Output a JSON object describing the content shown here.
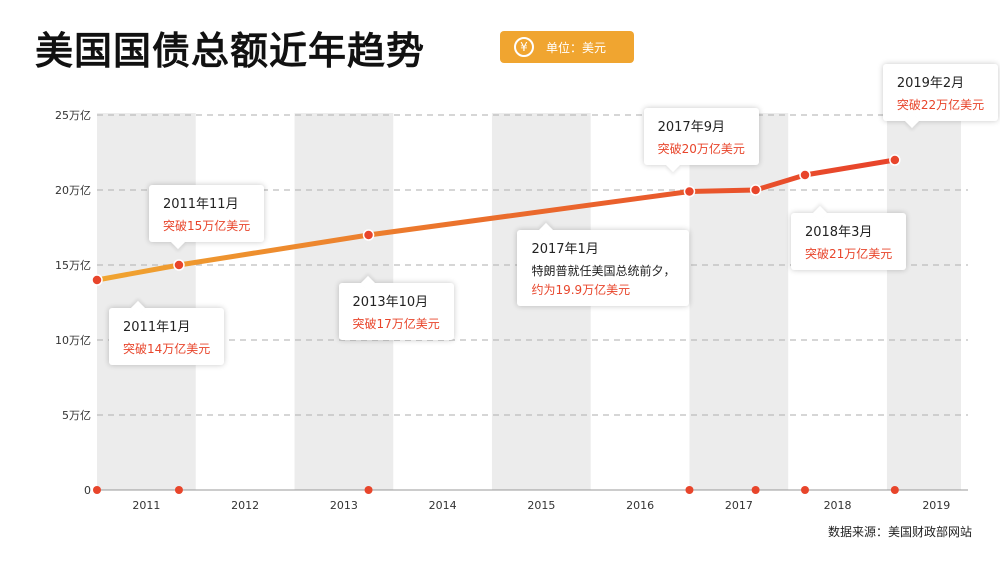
{
  "title": "美国国债总额近年趋势",
  "unit_icon": "¥",
  "unit_label": "单位：美元",
  "source": "数据来源：美国财政部网站",
  "colors": {
    "line_start": "#f0a530",
    "line_end": "#e8452b",
    "accent": "#e8452b",
    "band": "#ececec",
    "grid": "#bdbdbd"
  },
  "chart_data": {
    "type": "line",
    "title": "美国国债总额近年趋势",
    "xlabel": "",
    "ylabel": "",
    "unit": "美元",
    "ylim": [
      0,
      25
    ],
    "yticks": [
      0,
      5,
      10,
      15,
      20,
      25
    ],
    "ytick_labels": [
      "0",
      "5万亿",
      "10万亿",
      "15万亿",
      "20万亿",
      "25万亿"
    ],
    "xlim": [
      2011.0,
      2019.75
    ],
    "year_labels": [
      "2011",
      "2012",
      "2013",
      "2014",
      "2015",
      "2016",
      "2017",
      "2018",
      "2019"
    ],
    "grid": "horizontal dashed",
    "series": [
      {
        "points": [
          {
            "date": "2011年1月",
            "x": 2011.0,
            "y": 14
          },
          {
            "date": "2011年11月",
            "x": 2011.83,
            "y": 15
          },
          {
            "date": "2013年10月",
            "x": 2013.75,
            "y": 17
          },
          {
            "date": "2017年1月",
            "x": 2017.0,
            "y": 19.9
          },
          {
            "date": "2017年9月",
            "x": 2017.67,
            "y": 20
          },
          {
            "date": "2018年3月",
            "x": 2018.17,
            "y": 21
          },
          {
            "date": "2019年2月",
            "x": 2019.08,
            "y": 22
          }
        ]
      }
    ],
    "annotations": [
      {
        "date": "2011年1月",
        "lines": [
          "突破14万亿美元"
        ]
      },
      {
        "date": "2011年11月",
        "lines": [
          "突破15万亿美元"
        ]
      },
      {
        "date": "2013年10月",
        "lines": [
          "突破17万亿美元"
        ]
      },
      {
        "date": "2017年1月",
        "lines": [
          "特朗普就任美国总统前夕，",
          "约为19.9万亿美元"
        ]
      },
      {
        "date": "2017年9月",
        "lines": [
          "突破20万亿美元"
        ]
      },
      {
        "date": "2018年3月",
        "lines": [
          "突破21万亿美元"
        ]
      },
      {
        "date": "2019年2月",
        "lines": [
          "突破22万亿美元"
        ]
      }
    ]
  }
}
